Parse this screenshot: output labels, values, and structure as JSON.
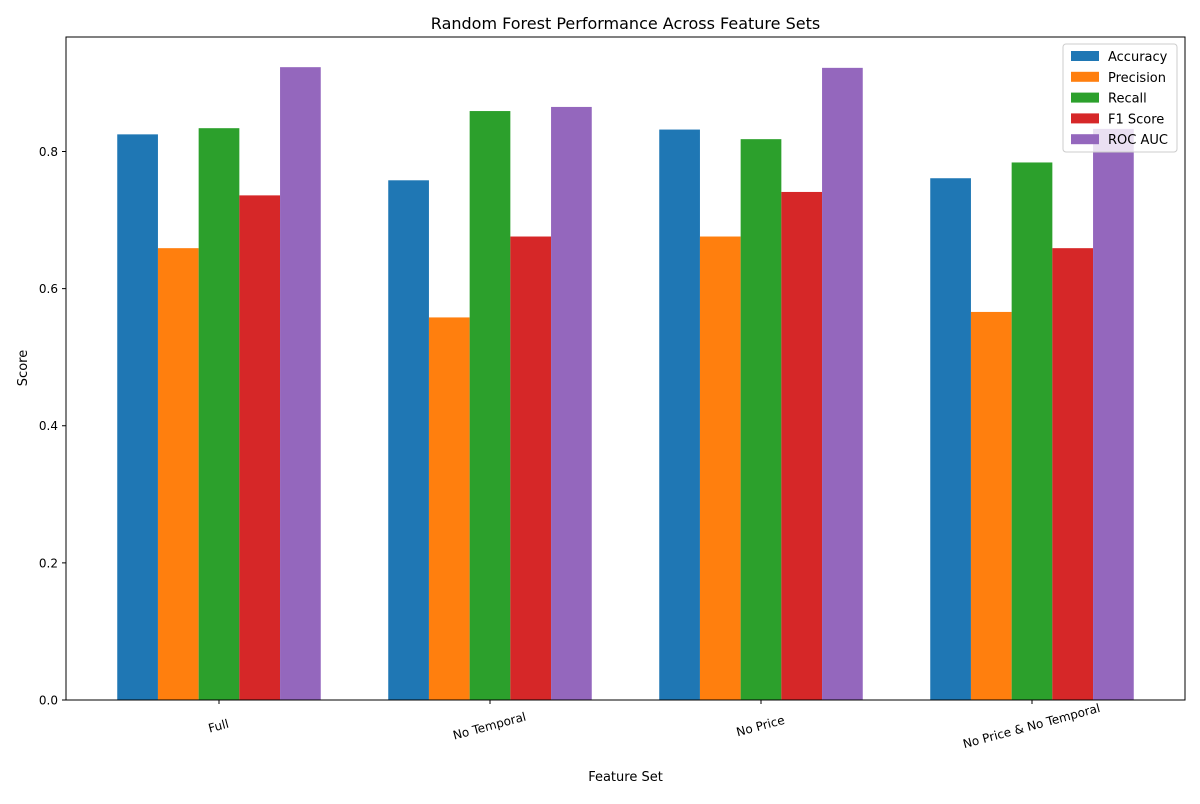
{
  "chart_data": {
    "type": "bar",
    "title": "Random Forest Performance Across Feature Sets",
    "xlabel": "Feature Set",
    "ylabel": "Score",
    "ylim": [
      0,
      0.967
    ],
    "yticks": [
      0.0,
      0.2,
      0.4,
      0.6,
      0.8
    ],
    "ytick_labels": [
      "0.0",
      "0.2",
      "0.4",
      "0.6",
      "0.8"
    ],
    "categories": [
      "Full",
      "No Temporal",
      "No Price",
      "No Price & No Temporal"
    ],
    "legend_position": "top-right",
    "grid": false,
    "series": [
      {
        "name": "Accuracy",
        "color": "#1f77b4",
        "values": [
          0.825,
          0.758,
          0.832,
          0.761
        ]
      },
      {
        "name": "Precision",
        "color": "#ff7f0e",
        "values": [
          0.659,
          0.558,
          0.676,
          0.566
        ]
      },
      {
        "name": "Recall",
        "color": "#2ca02c",
        "values": [
          0.834,
          0.859,
          0.818,
          0.784
        ]
      },
      {
        "name": "F1 Score",
        "color": "#d62728",
        "values": [
          0.736,
          0.676,
          0.741,
          0.659
        ]
      },
      {
        "name": "ROC AUC",
        "color": "#9467bd",
        "values": [
          0.923,
          0.865,
          0.922,
          0.833
        ]
      }
    ]
  }
}
